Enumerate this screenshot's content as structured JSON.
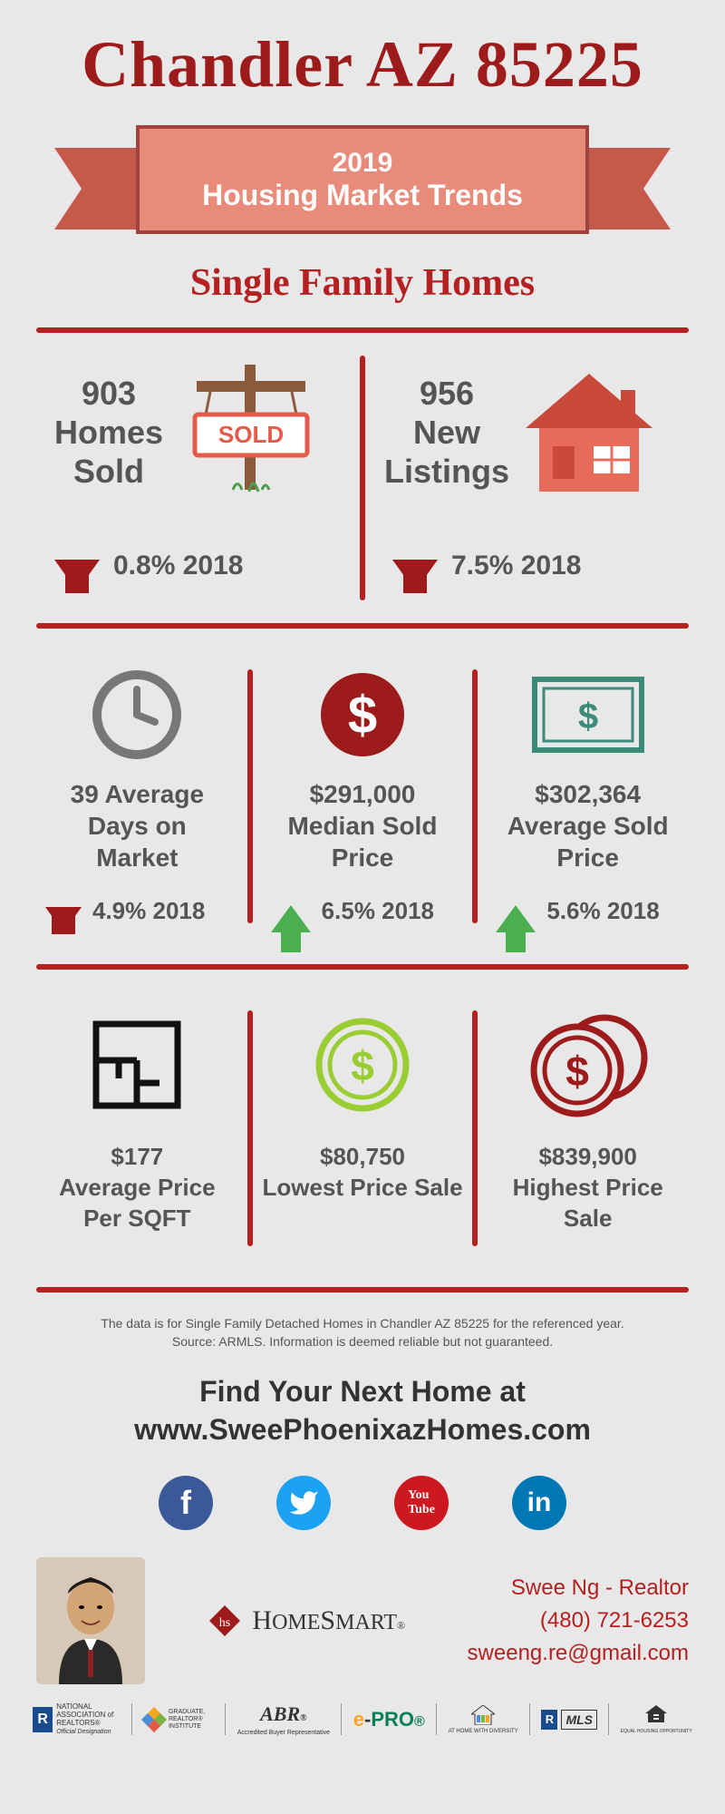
{
  "colors": {
    "accent": "#9e1b1b",
    "accent2": "#b52020",
    "ribbon_main": "#e88b7a",
    "ribbon_side": "#c55a4a",
    "ribbon_border": "#a0433f",
    "text_gray": "#555555",
    "bg": "#e8e8e8",
    "green": "#4caf50",
    "lime": "#9acd32",
    "teal": "#3b8a7a",
    "fb": "#3b5998",
    "tw": "#1da1f2",
    "yt": "#cc181e",
    "li": "#0077b5"
  },
  "header": {
    "title": "Chandler AZ 85225",
    "year": "2019",
    "subtitle": "Housing Market Trends",
    "category": "Single Family Homes"
  },
  "row1": {
    "homes_sold": {
      "value": "903",
      "label_l2": "Homes",
      "label_l3": "Sold",
      "delta": "0.8% 2018",
      "direction": "down"
    },
    "new_listings": {
      "value": "956",
      "label_l2": "New",
      "label_l3": "Listings",
      "delta": "7.5% 2018",
      "direction": "down"
    }
  },
  "row2": {
    "dom": {
      "line1": "39 Average",
      "line2": "Days on",
      "line3": "Market",
      "delta": "4.9% 2018",
      "direction": "down"
    },
    "median": {
      "line1": "$291,000",
      "line2": "Median Sold",
      "line3": "Price",
      "delta": "6.5% 2018",
      "direction": "up"
    },
    "average": {
      "line1": "$302,364",
      "line2": "Average Sold",
      "line3": "Price",
      "delta": "5.6% 2018",
      "direction": "up"
    }
  },
  "row3": {
    "ppsqft": {
      "line1": "$177",
      "line2": "Average Price",
      "line3": "Per SQFT"
    },
    "lowest": {
      "line1": "$80,750",
      "line2": "Lowest Price Sale"
    },
    "highest": {
      "line1": "$839,900",
      "line2": "Highest Price Sale"
    }
  },
  "disclaimer": {
    "l1": "The data is for Single Family Detached Homes in Chandler AZ 85225 for the referenced year.",
    "l2": "Source: ARMLS. Information is deemed reliable but not guaranteed."
  },
  "cta": {
    "l1": "Find Your Next Home at",
    "l2": "www.SweePhoenixazHomes.com"
  },
  "contact": {
    "name": "Swee Ng - Realtor",
    "phone": "(480) 721-6253",
    "email": "sweeng.re@gmail.com"
  },
  "brand": {
    "name": "HOMESMART"
  },
  "sold_tag": "SOLD",
  "logos": {
    "nar": "NATIONAL ASSOCIATION of REALTORS®",
    "nar_sub": "Official Designation",
    "gri": "GRADUATE, REALTOR® INSTITUTE",
    "abr": "Accredited Buyer Representative",
    "epro": "e-PRO",
    "diversity": "AT HOME WITH DIVERSITY",
    "mls": "MLS",
    "eho": "EQUAL HOUSING OPPORTUNITY"
  }
}
